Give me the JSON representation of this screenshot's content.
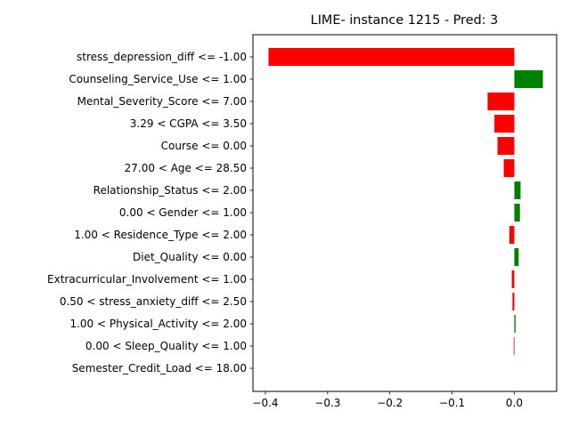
{
  "chart_data": {
    "type": "bar",
    "orientation": "horizontal",
    "title": "LIME- instance 1215 - Pred: 3",
    "xlabel": "",
    "ylabel": "",
    "xlim": [
      -0.42,
      0.068
    ],
    "xticks": [
      -0.4,
      -0.3,
      -0.2,
      -0.1,
      0.0
    ],
    "xtick_labels": [
      "−0.4",
      "−0.3",
      "−0.2",
      "−0.1",
      "0.0"
    ],
    "grid": false,
    "colors": {
      "positive": "#008000",
      "negative": "#ff0000"
    },
    "categories": [
      "stress_depression_diff <= -1.00",
      "Counseling_Service_Use <= 1.00",
      "Mental_Severity_Score <= 7.00",
      "3.29 < CGPA <= 3.50",
      "Course <= 0.00",
      "27.00 < Age <= 28.50",
      "Relationship_Status <= 2.00",
      "0.00 < Gender <= 1.00",
      "1.00 < Residence_Type <= 2.00",
      "Diet_Quality <= 0.00",
      "Extracurricular_Involvement <= 1.00",
      "0.50 < stress_anxiety_diff <= 2.50",
      "1.00 < Physical_Activity <= 2.00",
      "0.00 < Sleep_Quality <= 1.00",
      "Semester_Credit_Load <= 18.00"
    ],
    "values": [
      -0.395,
      0.046,
      -0.043,
      -0.032,
      -0.027,
      -0.017,
      0.01,
      0.009,
      -0.008,
      0.007,
      -0.004,
      -0.003,
      0.002,
      -0.001,
      0.0
    ]
  }
}
